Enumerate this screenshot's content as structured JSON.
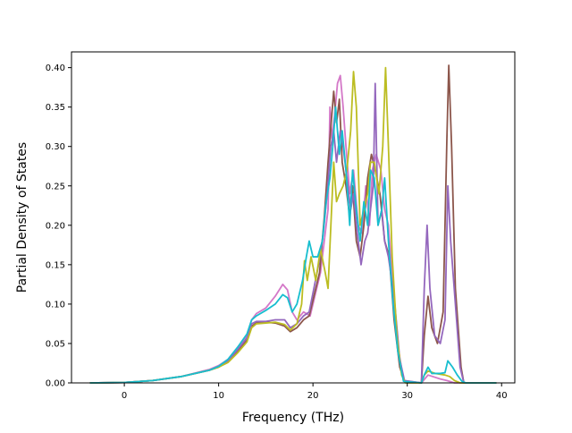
{
  "chart_data": {
    "type": "line",
    "title": "",
    "xlabel": "Frequency (THz)",
    "ylabel": "Partial Density of States",
    "xlim": [
      -5.6,
      41.4
    ],
    "ylim": [
      0.0,
      0.42
    ],
    "xticks": [
      0,
      10,
      20,
      30,
      40
    ],
    "xtick_labels": [
      "0",
      "10",
      "20",
      "30",
      "40"
    ],
    "yticks": [
      0.0,
      0.05,
      0.1,
      0.15,
      0.2,
      0.25,
      0.3,
      0.35,
      0.4
    ],
    "ytick_labels": [
      "0.00",
      "0.05",
      "0.10",
      "0.15",
      "0.20",
      "0.25",
      "0.30",
      "0.35",
      "0.40"
    ],
    "grid": false,
    "legend": "none",
    "series": [
      {
        "color": "#d478c8",
        "points": [
          [
            -3.6,
            0
          ],
          [
            0,
            0.0005
          ],
          [
            3,
            0.003
          ],
          [
            6,
            0.008
          ],
          [
            9,
            0.017
          ],
          [
            10,
            0.022
          ],
          [
            11,
            0.03
          ],
          [
            12,
            0.045
          ],
          [
            13,
            0.06
          ],
          [
            13.5,
            0.08
          ],
          [
            14,
            0.088
          ],
          [
            15,
            0.095
          ],
          [
            16,
            0.11
          ],
          [
            16.8,
            0.125
          ],
          [
            17.3,
            0.118
          ],
          [
            17.8,
            0.09
          ],
          [
            18.3,
            0.08
          ],
          [
            19,
            0.09
          ],
          [
            19.7,
            0.085
          ],
          [
            20.2,
            0.11
          ],
          [
            20.8,
            0.14
          ],
          [
            21.3,
            0.19
          ],
          [
            21.6,
            0.22
          ],
          [
            21.8,
            0.35
          ],
          [
            22,
            0.31
          ],
          [
            22.3,
            0.34
          ],
          [
            22.6,
            0.38
          ],
          [
            22.9,
            0.39
          ],
          [
            23.2,
            0.35
          ],
          [
            23.5,
            0.3
          ],
          [
            23.9,
            0.24
          ],
          [
            24.3,
            0.27
          ],
          [
            24.8,
            0.2
          ],
          [
            25.2,
            0.19
          ],
          [
            25.6,
            0.25
          ],
          [
            26,
            0.2
          ],
          [
            26.3,
            0.27
          ],
          [
            26.7,
            0.29
          ],
          [
            27.2,
            0.27
          ],
          [
            27.6,
            0.22
          ],
          [
            28,
            0.2
          ],
          [
            28.5,
            0.12
          ],
          [
            29.1,
            0.04
          ],
          [
            29.6,
            0.003
          ],
          [
            31.5,
            0
          ],
          [
            32.2,
            0.01
          ],
          [
            33.5,
            0.005
          ],
          [
            34.2,
            0.003
          ],
          [
            35,
            0
          ],
          [
            39.4,
            0
          ]
        ]
      },
      {
        "color": "#8c564b",
        "points": [
          [
            -3.6,
            0
          ],
          [
            0,
            0.0005
          ],
          [
            3,
            0.003
          ],
          [
            6,
            0.008
          ],
          [
            9,
            0.016
          ],
          [
            10,
            0.02
          ],
          [
            11,
            0.027
          ],
          [
            12,
            0.04
          ],
          [
            13,
            0.055
          ],
          [
            13.5,
            0.072
          ],
          [
            14,
            0.076
          ],
          [
            15,
            0.077
          ],
          [
            16,
            0.076
          ],
          [
            17,
            0.072
          ],
          [
            17.6,
            0.065
          ],
          [
            18.3,
            0.07
          ],
          [
            19,
            0.08
          ],
          [
            19.6,
            0.085
          ],
          [
            20.1,
            0.11
          ],
          [
            20.7,
            0.14
          ],
          [
            21.2,
            0.21
          ],
          [
            21.6,
            0.28
          ],
          [
            22,
            0.34
          ],
          [
            22.2,
            0.37
          ],
          [
            22.5,
            0.33
          ],
          [
            22.8,
            0.36
          ],
          [
            23.1,
            0.28
          ],
          [
            23.5,
            0.25
          ],
          [
            23.9,
            0.21
          ],
          [
            24.2,
            0.25
          ],
          [
            24.6,
            0.18
          ],
          [
            25,
            0.16
          ],
          [
            25.4,
            0.2
          ],
          [
            25.8,
            0.26
          ],
          [
            26.2,
            0.29
          ],
          [
            26.6,
            0.27
          ],
          [
            27.1,
            0.24
          ],
          [
            27.6,
            0.18
          ],
          [
            28.1,
            0.16
          ],
          [
            28.6,
            0.08
          ],
          [
            29.2,
            0.02
          ],
          [
            29.7,
            0.002
          ],
          [
            31.5,
            0
          ],
          [
            31.8,
            0.06
          ],
          [
            32.2,
            0.11
          ],
          [
            32.6,
            0.07
          ],
          [
            33.2,
            0.05
          ],
          [
            33.8,
            0.09
          ],
          [
            34.2,
            0.31
          ],
          [
            34.4,
            0.403
          ],
          [
            34.7,
            0.3
          ],
          [
            35.1,
            0.12
          ],
          [
            35.7,
            0.02
          ],
          [
            36,
            0
          ],
          [
            39.4,
            0
          ]
        ]
      },
      {
        "color": "#9467bd",
        "points": [
          [
            -3.6,
            0
          ],
          [
            0,
            0.0005
          ],
          [
            3,
            0.003
          ],
          [
            6,
            0.008
          ],
          [
            9,
            0.016
          ],
          [
            10,
            0.021
          ],
          [
            11,
            0.028
          ],
          [
            12,
            0.042
          ],
          [
            13,
            0.057
          ],
          [
            13.5,
            0.075
          ],
          [
            14,
            0.078
          ],
          [
            15,
            0.078
          ],
          [
            16,
            0.08
          ],
          [
            17,
            0.08
          ],
          [
            17.6,
            0.07
          ],
          [
            18.3,
            0.075
          ],
          [
            19,
            0.085
          ],
          [
            19.6,
            0.09
          ],
          [
            20.1,
            0.12
          ],
          [
            20.6,
            0.15
          ],
          [
            21.1,
            0.19
          ],
          [
            21.5,
            0.24
          ],
          [
            21.9,
            0.3
          ],
          [
            22.2,
            0.32
          ],
          [
            22.5,
            0.28
          ],
          [
            22.9,
            0.32
          ],
          [
            23.2,
            0.3
          ],
          [
            23.6,
            0.26
          ],
          [
            24,
            0.22
          ],
          [
            24.3,
            0.24
          ],
          [
            24.7,
            0.19
          ],
          [
            25.1,
            0.15
          ],
          [
            25.5,
            0.18
          ],
          [
            25.8,
            0.19
          ],
          [
            26.1,
            0.22
          ],
          [
            26.4,
            0.25
          ],
          [
            26.6,
            0.38
          ],
          [
            26.9,
            0.2
          ],
          [
            27.3,
            0.22
          ],
          [
            27.6,
            0.18
          ],
          [
            28,
            0.16
          ],
          [
            28.6,
            0.11
          ],
          [
            29.2,
            0.03
          ],
          [
            29.7,
            0.003
          ],
          [
            31.5,
            0
          ],
          [
            31.8,
            0.12
          ],
          [
            32.1,
            0.2
          ],
          [
            32.4,
            0.12
          ],
          [
            32.9,
            0.06
          ],
          [
            33.5,
            0.05
          ],
          [
            34,
            0.08
          ],
          [
            34.3,
            0.25
          ],
          [
            34.6,
            0.18
          ],
          [
            35.1,
            0.1
          ],
          [
            35.6,
            0.02
          ],
          [
            36,
            0
          ],
          [
            39.4,
            0
          ]
        ]
      },
      {
        "color": "#bcbd22",
        "points": [
          [
            -3.6,
            0
          ],
          [
            0,
            0.0005
          ],
          [
            3,
            0.003
          ],
          [
            6,
            0.008
          ],
          [
            9,
            0.016
          ],
          [
            10,
            0.02
          ],
          [
            11,
            0.026
          ],
          [
            12,
            0.038
          ],
          [
            13,
            0.052
          ],
          [
            13.5,
            0.07
          ],
          [
            14,
            0.075
          ],
          [
            15,
            0.076
          ],
          [
            16,
            0.077
          ],
          [
            17,
            0.074
          ],
          [
            17.6,
            0.067
          ],
          [
            18.3,
            0.075
          ],
          [
            18.8,
            0.1
          ],
          [
            19.1,
            0.155
          ],
          [
            19.4,
            0.13
          ],
          [
            19.8,
            0.16
          ],
          [
            20.3,
            0.13
          ],
          [
            20.8,
            0.17
          ],
          [
            21.3,
            0.14
          ],
          [
            21.6,
            0.12
          ],
          [
            21.9,
            0.2
          ],
          [
            22.2,
            0.28
          ],
          [
            22.5,
            0.23
          ],
          [
            22.8,
            0.24
          ],
          [
            23.2,
            0.25
          ],
          [
            23.6,
            0.27
          ],
          [
            24,
            0.32
          ],
          [
            24.3,
            0.395
          ],
          [
            24.6,
            0.35
          ],
          [
            25,
            0.2
          ],
          [
            25.4,
            0.22
          ],
          [
            25.8,
            0.24
          ],
          [
            26.1,
            0.28
          ],
          [
            26.5,
            0.28
          ],
          [
            27,
            0.24
          ],
          [
            27.4,
            0.3
          ],
          [
            27.7,
            0.4
          ],
          [
            28,
            0.3
          ],
          [
            28.4,
            0.16
          ],
          [
            28.9,
            0.06
          ],
          [
            29.4,
            0.01
          ],
          [
            29.8,
            0
          ],
          [
            31.5,
            0
          ],
          [
            31.8,
            0.01
          ],
          [
            32.2,
            0.015
          ],
          [
            33,
            0.012
          ],
          [
            34,
            0.01
          ],
          [
            34.5,
            0.008
          ],
          [
            35,
            0.003
          ],
          [
            35.6,
            0
          ],
          [
            39.4,
            0
          ]
        ]
      },
      {
        "color": "#17becf",
        "points": [
          [
            -3.6,
            0
          ],
          [
            0,
            0.0005
          ],
          [
            3,
            0.003
          ],
          [
            6,
            0.008
          ],
          [
            9,
            0.016
          ],
          [
            10,
            0.021
          ],
          [
            11,
            0.03
          ],
          [
            12,
            0.045
          ],
          [
            13,
            0.062
          ],
          [
            13.5,
            0.08
          ],
          [
            14,
            0.085
          ],
          [
            15,
            0.092
          ],
          [
            16,
            0.1
          ],
          [
            16.8,
            0.112
          ],
          [
            17.3,
            0.108
          ],
          [
            17.8,
            0.09
          ],
          [
            18.3,
            0.1
          ],
          [
            18.9,
            0.13
          ],
          [
            19.3,
            0.16
          ],
          [
            19.6,
            0.18
          ],
          [
            20,
            0.16
          ],
          [
            20.5,
            0.16
          ],
          [
            21,
            0.18
          ],
          [
            21.4,
            0.23
          ],
          [
            21.8,
            0.26
          ],
          [
            22.1,
            0.3
          ],
          [
            22.4,
            0.35
          ],
          [
            22.8,
            0.29
          ],
          [
            23.1,
            0.32
          ],
          [
            23.5,
            0.27
          ],
          [
            23.9,
            0.2
          ],
          [
            24.2,
            0.27
          ],
          [
            24.6,
            0.22
          ],
          [
            25,
            0.18
          ],
          [
            25.4,
            0.23
          ],
          [
            25.8,
            0.2
          ],
          [
            26.1,
            0.27
          ],
          [
            26.5,
            0.26
          ],
          [
            26.9,
            0.2
          ],
          [
            27.3,
            0.22
          ],
          [
            27.6,
            0.26
          ],
          [
            28,
            0.18
          ],
          [
            28.5,
            0.1
          ],
          [
            29,
            0.04
          ],
          [
            29.6,
            0.002
          ],
          [
            31.5,
            0
          ],
          [
            31.8,
            0.01
          ],
          [
            32.2,
            0.02
          ],
          [
            32.6,
            0.012
          ],
          [
            33.5,
            0.012
          ],
          [
            34,
            0.013
          ],
          [
            34.3,
            0.028
          ],
          [
            34.8,
            0.02
          ],
          [
            35.3,
            0.01
          ],
          [
            35.8,
            0.002
          ],
          [
            36.2,
            0
          ],
          [
            39.4,
            0
          ]
        ]
      }
    ]
  }
}
